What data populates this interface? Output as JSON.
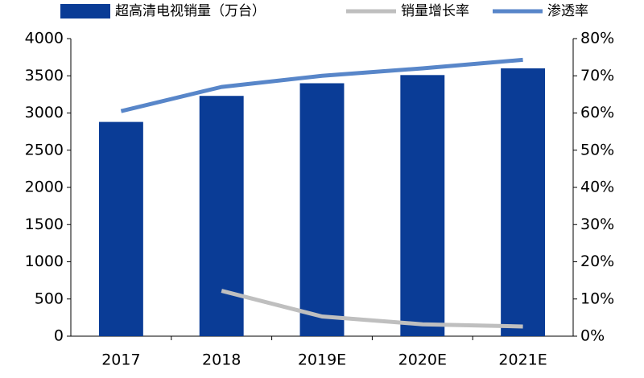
{
  "chart_data": {
    "type": "bar",
    "categories": [
      "2017",
      "2018",
      "2019E",
      "2020E",
      "2021E"
    ],
    "series": [
      {
        "name": "超高清电视销量（万台）",
        "type": "bar",
        "color": "#0a3c96",
        "values": [
          2880,
          3230,
          3400,
          3510,
          3600
        ]
      },
      {
        "name": "销量增长率",
        "type": "line",
        "axis": "y2",
        "color": "#bfbfbf",
        "values": [
          null,
          12.2,
          5.3,
          3.2,
          2.6
        ]
      },
      {
        "name": "渗透率",
        "type": "line",
        "axis": "y2",
        "color": "#5886c9",
        "values": [
          60.5,
          67,
          70,
          72,
          74.3
        ]
      }
    ],
    "ylim": [
      0,
      4000
    ],
    "yticks": [
      0,
      500,
      1000,
      1500,
      2000,
      2500,
      3000,
      3500,
      4000
    ],
    "y2lim": [
      0,
      80
    ],
    "y2ticks": [
      {
        "value": 0,
        "label": "0%"
      },
      {
        "value": 10,
        "label": "10%"
      },
      {
        "value": 20,
        "label": "20%"
      },
      {
        "value": 30,
        "label": "30%"
      },
      {
        "value": 40,
        "label": "40%"
      },
      {
        "value": 50,
        "label": "50%"
      },
      {
        "value": 60,
        "label": "60%"
      },
      {
        "value": 70,
        "label": "70%"
      },
      {
        "value": 80,
        "label": "80%"
      }
    ],
    "grid": false,
    "legend": "top"
  }
}
